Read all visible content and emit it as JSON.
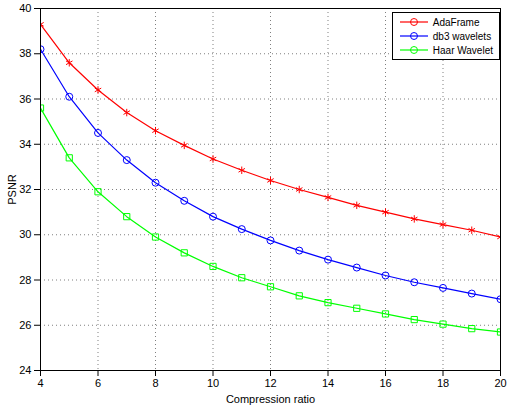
{
  "chart_data": {
    "type": "line",
    "x_label": "Compression ratio",
    "y_label": "PSNR",
    "x": [
      4,
      5,
      6,
      7,
      8,
      9,
      10,
      11,
      12,
      13,
      14,
      15,
      16,
      17,
      18,
      19,
      20
    ],
    "series": [
      {
        "name": "AdaFrame",
        "color": "#ff0000",
        "marker": "asterisk",
        "line_style": "solid",
        "values": [
          39.3,
          37.6,
          36.4,
          35.4,
          34.6,
          33.95,
          33.35,
          32.85,
          32.4,
          32.0,
          31.65,
          31.3,
          31.0,
          30.7,
          30.45,
          30.2,
          29.9
        ]
      },
      {
        "name": "db3 wavelets",
        "color": "#0000ff",
        "marker": "circle",
        "line_style": "solid",
        "values": [
          38.2,
          36.1,
          34.5,
          33.3,
          32.3,
          31.5,
          30.8,
          30.25,
          29.75,
          29.3,
          28.9,
          28.55,
          28.2,
          27.9,
          27.65,
          27.4,
          27.15
        ]
      },
      {
        "name": "Haar Wavelet",
        "color": "#00ff00",
        "marker": "square",
        "line_style": "solid",
        "values": [
          35.6,
          33.4,
          31.9,
          30.8,
          29.9,
          29.2,
          28.6,
          28.1,
          27.7,
          27.3,
          27.0,
          26.75,
          26.5,
          26.25,
          26.05,
          25.85,
          25.7
        ]
      }
    ],
    "xlim": [
      4,
      20
    ],
    "ylim": [
      24,
      40
    ],
    "xticks": [
      4,
      6,
      8,
      10,
      12,
      14,
      16,
      18,
      20
    ],
    "yticks": [
      24,
      26,
      28,
      30,
      32,
      34,
      36,
      38,
      40
    ],
    "grid": true,
    "legend": "top-right"
  }
}
